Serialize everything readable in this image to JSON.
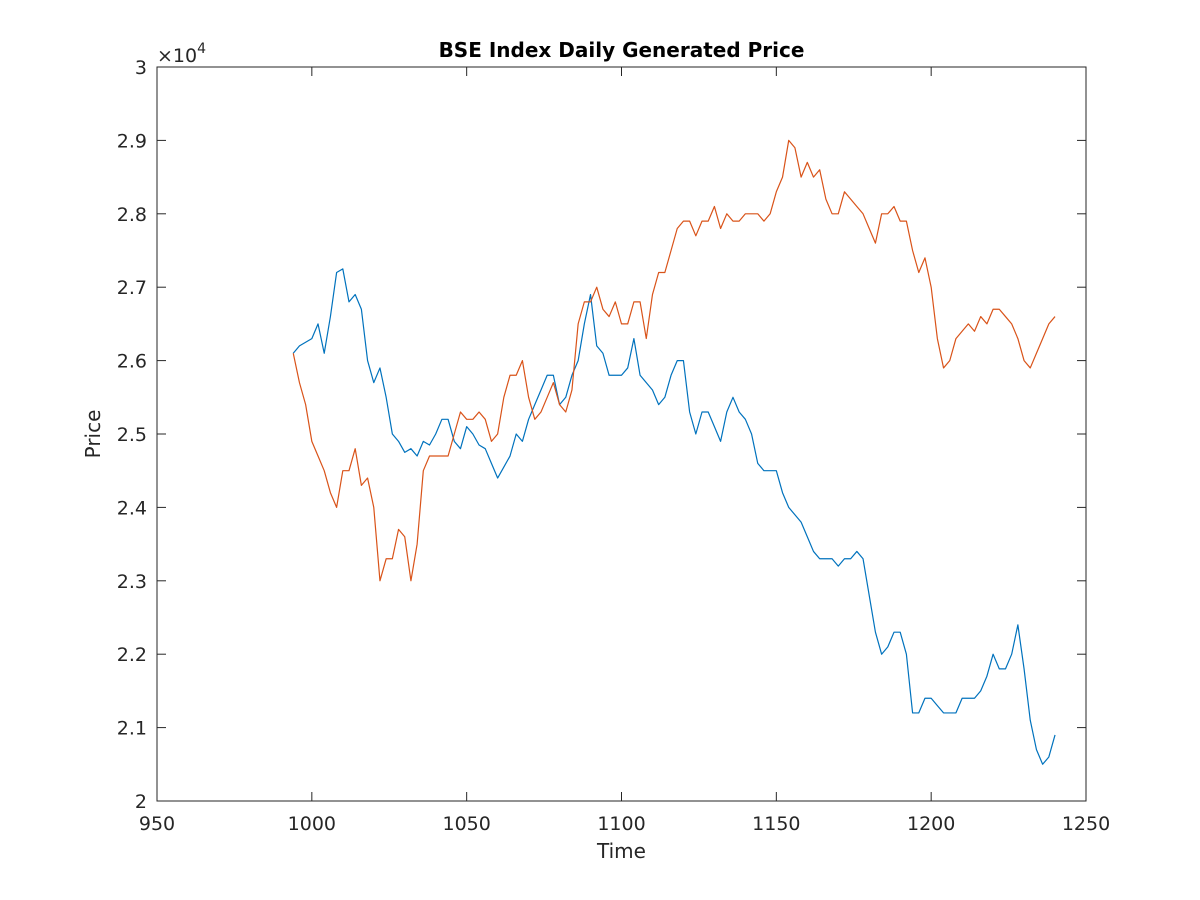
{
  "chart_data": {
    "type": "line",
    "title": "BSE Index Daily Generated Price",
    "xlabel": "Time",
    "ylabel": "Price",
    "xlim": [
      950,
      1250
    ],
    "ylim": [
      20000,
      30000
    ],
    "xticks": [
      950,
      1000,
      1050,
      1100,
      1150,
      1200,
      1250
    ],
    "yticks": [
      20000,
      21000,
      22000,
      23000,
      24000,
      25000,
      26000,
      27000,
      28000,
      29000,
      30000
    ],
    "ytick_labels": [
      "2",
      "2.1",
      "2.2",
      "2.3",
      "2.4",
      "2.5",
      "2.6",
      "2.7",
      "2.8",
      "2.9",
      "3"
    ],
    "y_multiplier_base": "10",
    "y_multiplier_exp": "4",
    "grid": false,
    "box": true,
    "series": [
      {
        "color": "#0072BD",
        "x": [
          994,
          996,
          998,
          1000,
          1002,
          1004,
          1006,
          1008,
          1010,
          1012,
          1014,
          1016,
          1018,
          1020,
          1022,
          1024,
          1026,
          1028,
          1030,
          1032,
          1034,
          1036,
          1038,
          1040,
          1042,
          1044,
          1046,
          1048,
          1050,
          1052,
          1054,
          1056,
          1058,
          1060,
          1062,
          1064,
          1066,
          1068,
          1070,
          1072,
          1074,
          1076,
          1078,
          1080,
          1082,
          1084,
          1086,
          1088,
          1090,
          1092,
          1094,
          1096,
          1098,
          1100,
          1102,
          1104,
          1106,
          1108,
          1110,
          1112,
          1114,
          1116,
          1118,
          1120,
          1122,
          1124,
          1126,
          1128,
          1130,
          1132,
          1134,
          1136,
          1138,
          1140,
          1142,
          1144,
          1146,
          1148,
          1150,
          1152,
          1154,
          1156,
          1158,
          1160,
          1162,
          1164,
          1166,
          1168,
          1170,
          1172,
          1174,
          1176,
          1178,
          1180,
          1182,
          1184,
          1186,
          1188,
          1190,
          1192,
          1194,
          1196,
          1198,
          1200,
          1202,
          1204,
          1206,
          1208,
          1210,
          1212,
          1214,
          1216,
          1218,
          1220,
          1222,
          1224,
          1226,
          1228,
          1230,
          1232,
          1234,
          1236,
          1238,
          1240
        ],
        "y": [
          26100,
          26200,
          26250,
          26300,
          26500,
          26100,
          26600,
          27200,
          27250,
          26800,
          26900,
          26700,
          26000,
          25700,
          25900,
          25500,
          25000,
          24900,
          24750,
          24800,
          24700,
          24900,
          24850,
          25000,
          25200,
          25200,
          24900,
          24800,
          25100,
          25000,
          24850,
          24800,
          24600,
          24400,
          24550,
          24700,
          25000,
          24900,
          25200,
          25400,
          25600,
          25800,
          25800,
          25400,
          25500,
          25800,
          26000,
          26500,
          26900,
          26200,
          26100,
          25800,
          25800,
          25800,
          25900,
          26300,
          25800,
          25700,
          25600,
          25400,
          25500,
          25800,
          26000,
          26000,
          25300,
          25000,
          25300,
          25300,
          25100,
          24900,
          25300,
          25500,
          25300,
          25200,
          25000,
          24600,
          24500,
          24500,
          24500,
          24200,
          24000,
          23900,
          23800,
          23600,
          23400,
          23300,
          23300,
          23300,
          23200,
          23300,
          23300,
          23400,
          23300,
          22800,
          22300,
          22000,
          22100,
          22300,
          22300,
          22000,
          21200,
          21200,
          21400,
          21400,
          21300,
          21200,
          21200,
          21200,
          21400,
          21400,
          21400,
          21500,
          21700,
          22000,
          21800,
          21800,
          22000,
          22400,
          21800,
          21100,
          20700,
          20500,
          20600,
          20900
        ]
      },
      {
        "color": "#D95319",
        "x": [
          994,
          996,
          998,
          1000,
          1002,
          1004,
          1006,
          1008,
          1010,
          1012,
          1014,
          1016,
          1018,
          1020,
          1022,
          1024,
          1026,
          1028,
          1030,
          1032,
          1034,
          1036,
          1038,
          1040,
          1042,
          1044,
          1046,
          1048,
          1050,
          1052,
          1054,
          1056,
          1058,
          1060,
          1062,
          1064,
          1066,
          1068,
          1070,
          1072,
          1074,
          1076,
          1078,
          1080,
          1082,
          1084,
          1086,
          1088,
          1090,
          1092,
          1094,
          1096,
          1098,
          1100,
          1102,
          1104,
          1106,
          1108,
          1110,
          1112,
          1114,
          1116,
          1118,
          1120,
          1122,
          1124,
          1126,
          1128,
          1130,
          1132,
          1134,
          1136,
          1138,
          1140,
          1142,
          1144,
          1146,
          1148,
          1150,
          1152,
          1154,
          1156,
          1158,
          1160,
          1162,
          1164,
          1166,
          1168,
          1170,
          1172,
          1174,
          1176,
          1178,
          1180,
          1182,
          1184,
          1186,
          1188,
          1190,
          1192,
          1194,
          1196,
          1198,
          1200,
          1202,
          1204,
          1206,
          1208,
          1210,
          1212,
          1214,
          1216,
          1218,
          1220,
          1222,
          1224,
          1226,
          1228,
          1230,
          1232,
          1234,
          1236,
          1238,
          1240
        ],
        "y": [
          26100,
          25700,
          25400,
          24900,
          24700,
          24500,
          24200,
          24000,
          24500,
          24500,
          24800,
          24300,
          24400,
          24000,
          23000,
          23300,
          23300,
          23700,
          23600,
          23000,
          23500,
          24500,
          24700,
          24700,
          24700,
          24700,
          25000,
          25300,
          25200,
          25200,
          25300,
          25200,
          24900,
          25000,
          25500,
          25800,
          25800,
          26000,
          25500,
          25200,
          25300,
          25500,
          25700,
          25400,
          25300,
          25600,
          26500,
          26800,
          26800,
          27000,
          26700,
          26600,
          26800,
          26500,
          26500,
          26800,
          26800,
          26300,
          26900,
          27200,
          27200,
          27500,
          27800,
          27900,
          27900,
          27700,
          27900,
          27900,
          28100,
          27800,
          28000,
          27900,
          27900,
          28000,
          28000,
          28000,
          27900,
          28000,
          28300,
          28500,
          29000,
          28900,
          28500,
          28700,
          28500,
          28600,
          28200,
          28000,
          28000,
          28300,
          28200,
          28100,
          28000,
          27800,
          27600,
          28000,
          28000,
          28100,
          27900,
          27900,
          27500,
          27200,
          27400,
          27000,
          26300,
          25900,
          26000,
          26300,
          26400,
          26500,
          26400,
          26600,
          26500,
          26700,
          26700,
          26600,
          26500,
          26300,
          26000,
          25900,
          26100,
          26300,
          26500,
          26600
        ]
      }
    ]
  }
}
